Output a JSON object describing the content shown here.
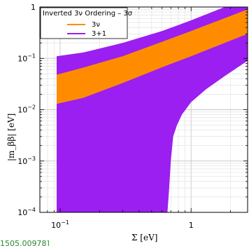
{
  "chart_data": {
    "type": "area",
    "x_scale": "log",
    "y_scale": "log",
    "xlim": [
      0.07,
      2.7
    ],
    "ylim": [
      0.0001,
      1
    ],
    "xlabel": "Σ [eV]",
    "ylabel": "|m_ββ| [eV]",
    "x_ticks": [
      {
        "value": 0.1,
        "base": "10",
        "exp": "−1"
      },
      {
        "value": 1,
        "label": "1"
      }
    ],
    "y_ticks": [
      {
        "value": 1,
        "label": "1"
      },
      {
        "value": 0.1,
        "base": "10",
        "exp": "−1"
      },
      {
        "value": 0.01,
        "base": "10",
        "exp": "−2"
      },
      {
        "value": 0.001,
        "base": "10",
        "exp": "−3"
      },
      {
        "value": 0.0001,
        "base": "10",
        "exp": "−4"
      }
    ],
    "grid": true,
    "legend": {
      "title": "Inverted 3ν Ordering – 3σ",
      "placement": "top-left",
      "items": [
        {
          "label": "3ν",
          "color": "#ff8c00"
        },
        {
          "label": "3+1",
          "color": "#9a1ff0"
        }
      ]
    },
    "series": [
      {
        "name": "3ν",
        "kind": "band",
        "color": "#ff8c00",
        "x": [
          0.094,
          0.15,
          0.3,
          0.6,
          1.0,
          2.7
        ],
        "upper": [
          0.048,
          0.066,
          0.11,
          0.21,
          0.34,
          0.9
        ],
        "lower": [
          0.013,
          0.017,
          0.033,
          0.067,
          0.11,
          0.3
        ]
      },
      {
        "name": "3+1",
        "kind": "band",
        "color": "#9a1ff0",
        "x": [
          0.094,
          0.15,
          0.3,
          0.6,
          1.0,
          2.7
        ],
        "upper": [
          0.11,
          0.13,
          0.2,
          0.34,
          0.55,
          1.5
        ],
        "lower_curve": {
          "x": [
            0.094,
            0.6,
            0.66,
            0.68,
            0.7,
            0.73,
            0.78,
            0.85,
            1.0,
            1.3,
            1.8,
            2.7
          ],
          "y": [
            0.0001,
            0.0001,
            0.0001,
            0.0003,
            0.001,
            0.003,
            0.005,
            0.008,
            0.014,
            0.025,
            0.045,
            0.09
          ]
        }
      }
    ]
  },
  "citation": "1505.00978]"
}
